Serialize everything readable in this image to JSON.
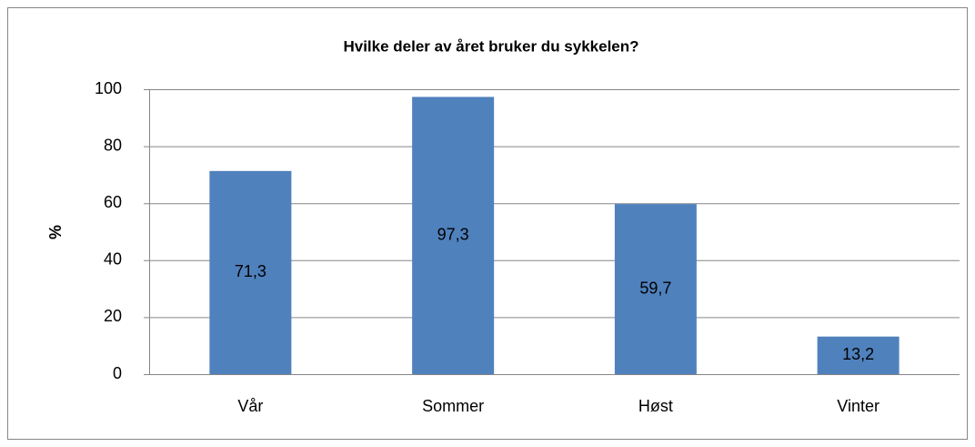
{
  "chart_data": {
    "type": "bar",
    "title": "Hvilke deler av året bruker du sykkelen?",
    "y_label": "%",
    "categories": [
      "Vår",
      "Sommer",
      "Høst",
      "Vinter"
    ],
    "values": [
      71.3,
      97.3,
      59.7,
      13.2
    ],
    "value_labels": [
      "71,3",
      "97,3",
      "59,7",
      "13,2"
    ],
    "color": "#4f81bd",
    "ylim": [
      0,
      100
    ],
    "yticks": [
      0,
      20,
      40,
      60,
      80,
      100
    ],
    "grid": true
  }
}
